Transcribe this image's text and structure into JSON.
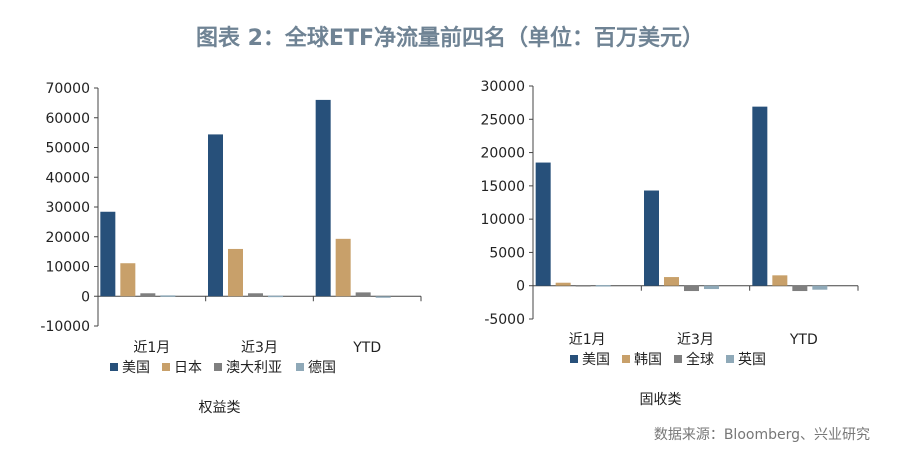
{
  "title": "图表 2：全球ETF净流量前四名（单位：百万美元）",
  "source": "数据来源：Bloomberg、兴业研究",
  "chart_data": [
    {
      "type": "bar",
      "title": "权益类",
      "categories": [
        "近1月",
        "近3月",
        "YTD"
      ],
      "ylim": [
        -10000,
        70000
      ],
      "yticks": [
        -10000,
        0,
        10000,
        20000,
        30000,
        40000,
        50000,
        60000,
        70000
      ],
      "legend": "bottom",
      "series": [
        {
          "name": "美国",
          "color": "#27507a",
          "values": [
            28400,
            54400,
            66000
          ]
        },
        {
          "name": "日本",
          "color": "#c8a06a",
          "values": [
            11100,
            15900,
            19300
          ]
        },
        {
          "name": "澳大利亚",
          "color": "#7f7f7f",
          "values": [
            1000,
            1000,
            1300
          ]
        },
        {
          "name": "德国",
          "color": "#8fa9b8",
          "values": [
            300,
            200,
            -200
          ]
        }
      ]
    },
    {
      "type": "bar",
      "title": "固收类",
      "categories": [
        "近1月",
        "近3月",
        "YTD"
      ],
      "ylim": [
        -5000,
        30000
      ],
      "yticks": [
        -5000,
        0,
        5000,
        10000,
        15000,
        20000,
        25000,
        30000
      ],
      "legend": "bottom",
      "series": [
        {
          "name": "美国",
          "color": "#27507a",
          "values": [
            18500,
            14300,
            26900
          ]
        },
        {
          "name": "韩国",
          "color": "#c8a06a",
          "values": [
            450,
            1300,
            1560
          ]
        },
        {
          "name": "全球",
          "color": "#7f7f7f",
          "values": [
            100,
            -800,
            -800
          ]
        },
        {
          "name": "英国",
          "color": "#8fa9b8",
          "values": [
            100,
            -500,
            -600
          ]
        }
      ]
    }
  ]
}
